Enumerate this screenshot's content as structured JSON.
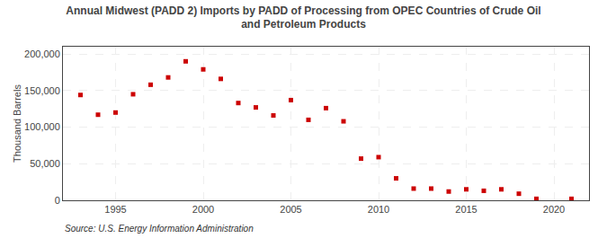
{
  "chart_data": {
    "type": "scatter",
    "title": "Annual Midwest (PADD 2) Imports by PADD of Processing from OPEC Countries of Crude Oil\nand Petroleum Products",
    "ylabel": "Thousand Barrels",
    "annotations": [
      "Source: U.S. Energy Information Administration"
    ],
    "color": "#cc0000",
    "marker": "square",
    "grid": true,
    "x": [
      1993,
      1994,
      1995,
      1996,
      1997,
      1998,
      1999,
      2000,
      2001,
      2002,
      2003,
      2004,
      2005,
      2006,
      2007,
      2008,
      2009,
      2010,
      2011,
      2012,
      2013,
      2014,
      2015,
      2016,
      2017,
      2018,
      2019,
      2021
    ],
    "values": [
      144000,
      117000,
      120000,
      145000,
      158000,
      168000,
      190000,
      179000,
      166000,
      133000,
      127000,
      116000,
      137000,
      110000,
      126000,
      108000,
      57000,
      59000,
      30000,
      16000,
      16000,
      12000,
      15000,
      13000,
      15000,
      9000,
      2000,
      2000
    ],
    "xlim": [
      1992,
      2022
    ],
    "xticks": [
      1995,
      2000,
      2005,
      2010,
      2015,
      2020
    ],
    "ylim": [
      0,
      210000
    ],
    "yticks": [
      0,
      {
        "value": 50000,
        "label": "50,000"
      },
      {
        "value": 100000,
        "label": "100,000"
      },
      {
        "value": 150000,
        "label": "150,000"
      },
      {
        "value": 200000,
        "label": "200,000"
      }
    ]
  }
}
